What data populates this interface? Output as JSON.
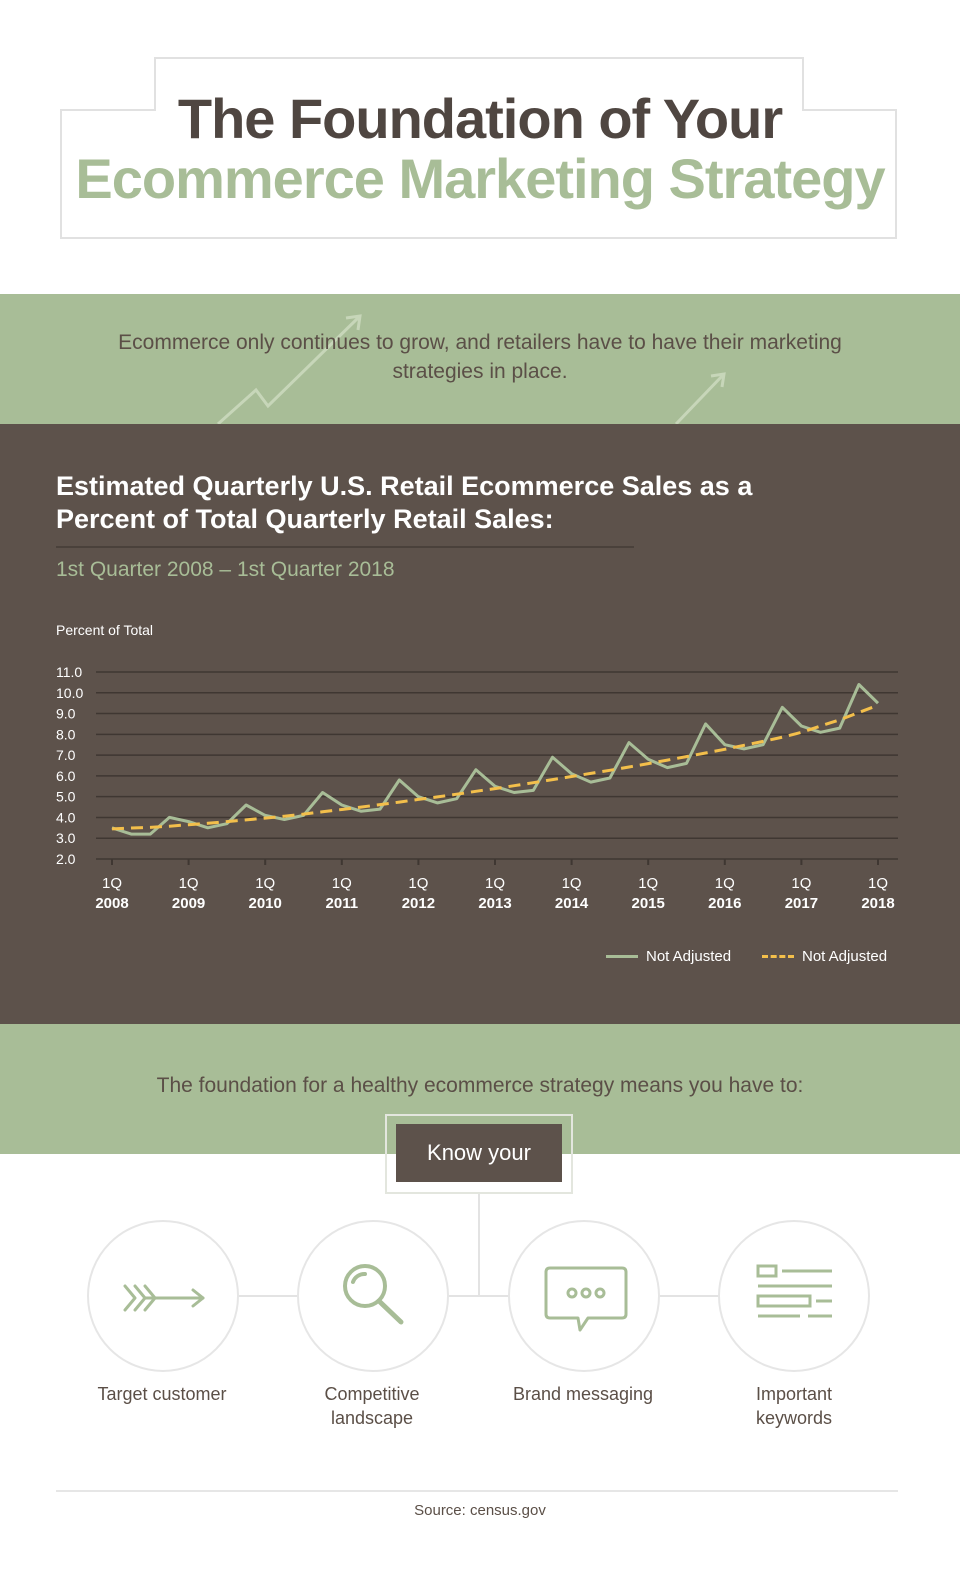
{
  "header": {
    "title_line1": "The Foundation of Your",
    "title_line2": "Ecommerce Marketing Strategy"
  },
  "intro": {
    "text": "Ecommerce only continues to grow, and retailers have to have their marketing strategies in place."
  },
  "chart_section": {
    "title": "Estimated Quarterly U.S. Retail Ecommerce Sales as a Percent of Total Quarterly Retail Sales:",
    "subtitle": "1st Quarter 2008 – 1st Quarter 2018"
  },
  "chart_data": {
    "type": "line",
    "title": "Estimated Quarterly U.S. Retail Ecommerce Sales as a Percent of Total Quarterly Retail Sales:",
    "subtitle": "1st Quarter 2008 – 1st Quarter 2018",
    "ylabel": "Percent of Total",
    "xlabel": "",
    "ylim": [
      2.0,
      11.0
    ],
    "y_ticks": [
      "11.0",
      "10.0",
      "9.0",
      "8.0",
      "7.0",
      "6.0",
      "5.0",
      "4.0",
      "3.0",
      "2.0"
    ],
    "x_ticks": [
      {
        "q": "1Q",
        "year": "2008"
      },
      {
        "q": "1Q",
        "year": "2009"
      },
      {
        "q": "1Q",
        "year": "2010"
      },
      {
        "q": "1Q",
        "year": "2011"
      },
      {
        "q": "1Q",
        "year": "2012"
      },
      {
        "q": "1Q",
        "year": "2013"
      },
      {
        "q": "1Q",
        "year": "2014"
      },
      {
        "q": "1Q",
        "year": "2015"
      },
      {
        "q": "1Q",
        "year": "2016"
      },
      {
        "q": "1Q",
        "year": "2017"
      },
      {
        "q": "1Q",
        "year": "2018"
      }
    ],
    "grid": true,
    "legend_position": "bottom-right",
    "series": [
      {
        "name": "Not Adjusted",
        "style": "solid",
        "color": "#a8bd97",
        "values": [
          3.5,
          3.2,
          3.2,
          4.0,
          3.8,
          3.5,
          3.7,
          4.6,
          4.1,
          3.9,
          4.1,
          5.2,
          4.6,
          4.3,
          4.4,
          5.8,
          5.0,
          4.7,
          4.9,
          6.3,
          5.5,
          5.2,
          5.3,
          6.9,
          6.1,
          5.7,
          5.9,
          7.6,
          6.8,
          6.4,
          6.6,
          8.5,
          7.5,
          7.3,
          7.5,
          9.3,
          8.4,
          8.1,
          8.3,
          10.4,
          9.5
        ]
      },
      {
        "name": "Not Adjusted",
        "style": "dashed",
        "color": "#f3bf4b",
        "values": [
          3.45,
          3.49,
          3.52,
          3.58,
          3.65,
          3.72,
          3.8,
          3.88,
          3.97,
          4.06,
          4.16,
          4.27,
          4.38,
          4.5,
          4.62,
          4.74,
          4.87,
          4.99,
          5.12,
          5.26,
          5.39,
          5.53,
          5.67,
          5.82,
          5.97,
          6.12,
          6.27,
          6.43,
          6.59,
          6.76,
          6.93,
          7.1,
          7.28,
          7.47,
          7.66,
          7.86,
          8.1,
          8.4,
          8.7,
          9.05,
          9.4
        ]
      }
    ]
  },
  "foundation": {
    "text": "The foundation for a healthy ecommerce strategy means you have to:",
    "know_label": "Know your",
    "items": [
      {
        "label_line1": "Target customer",
        "label_line2": "",
        "icon": "arrow-icon"
      },
      {
        "label_line1": "Competitive",
        "label_line2": "landscape",
        "icon": "magnifier-icon"
      },
      {
        "label_line1": "Brand messaging",
        "label_line2": "",
        "icon": "chat-bubble-icon"
      },
      {
        "label_line1": "Important",
        "label_line2": "keywords",
        "icon": "keyword-list-icon"
      }
    ]
  },
  "footer": {
    "source": "Source: census.gov"
  },
  "colors": {
    "green": "#a8bd97",
    "brown": "#5d524b",
    "dash": "#f3bf4b",
    "text": "#5b4f47"
  }
}
